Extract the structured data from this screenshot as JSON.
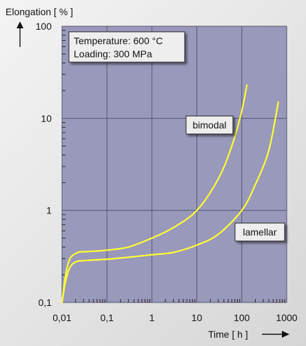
{
  "chart_data": {
    "type": "line",
    "xlabel": "Time [ h ]",
    "ylabel": "Elongation [ % ]",
    "x_scale": "log",
    "y_scale": "log",
    "xlim": [
      0.01,
      1000
    ],
    "ylim": [
      0.1,
      100
    ],
    "x_ticks": [
      "0,01",
      "0,1",
      "1",
      "10",
      "100",
      "1000"
    ],
    "x_tick_values": [
      0.01,
      0.1,
      1,
      10,
      100,
      1000
    ],
    "y_ticks": [
      "0,1",
      "1",
      "10",
      "100"
    ],
    "y_tick_values": [
      0.1,
      1,
      10,
      100
    ],
    "grid": true,
    "annotation": {
      "line1": "Temperature: 600 °C",
      "line2": "Loading: 300 MPa"
    },
    "series": [
      {
        "name": "bimodal",
        "color": "#ffff33",
        "x": [
          0.01,
          0.012,
          0.015,
          0.02,
          0.025,
          0.03,
          0.05,
          0.1,
          0.3,
          1,
          3,
          10,
          30,
          60,
          100,
          130
        ],
        "y": [
          0.1,
          0.2,
          0.3,
          0.34,
          0.355,
          0.355,
          0.36,
          0.37,
          0.4,
          0.5,
          0.65,
          1.0,
          2.2,
          5.0,
          12,
          23
        ]
      },
      {
        "name": "lamellar",
        "color": "#ffff33",
        "x": [
          0.01,
          0.012,
          0.015,
          0.02,
          0.03,
          0.1,
          0.3,
          1,
          3,
          10,
          30,
          100,
          200,
          400,
          650
        ],
        "y": [
          0.1,
          0.17,
          0.24,
          0.275,
          0.285,
          0.295,
          0.31,
          0.33,
          0.35,
          0.42,
          0.55,
          1.0,
          1.9,
          4.5,
          15
        ]
      }
    ]
  }
}
